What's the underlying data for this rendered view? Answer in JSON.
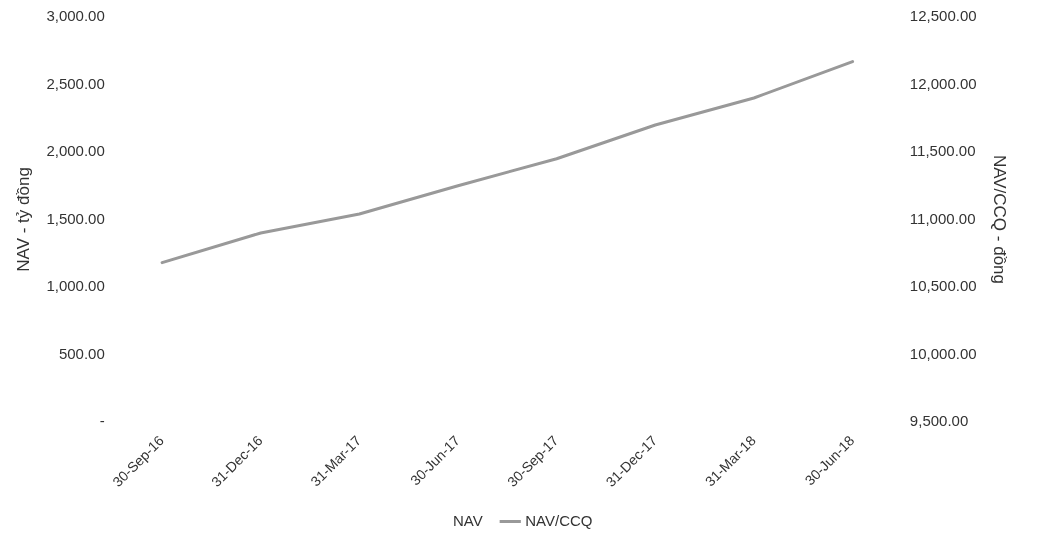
{
  "chart_data": {
    "type": "line",
    "ylabel": "NAV - tỷ đồng",
    "y2label": "NAV/CCQ - đồng",
    "categories": [
      "30-Sep-16",
      "31-Dec-16",
      "31-Mar-17",
      "30-Jun-17",
      "30-Sep-17",
      "31-Dec-17",
      "31-Mar-18",
      "30-Jun-18"
    ],
    "series": [
      {
        "name": "NAV",
        "type": "bar",
        "values": [
          null,
          null,
          null,
          null,
          null,
          null,
          null,
          null
        ]
      },
      {
        "name": "NAV/CCQ",
        "axis": "y2",
        "color": "#999999",
        "values": [
          10680,
          10900,
          11040,
          11250,
          11450,
          11700,
          11900,
          12170
        ]
      }
    ],
    "ylim": [
      0,
      3000
    ],
    "yticks": [
      {
        "value": 0,
        "label": "-"
      },
      {
        "value": 500,
        "label": "500.00"
      },
      {
        "value": 1000,
        "label": "1,000.00"
      },
      {
        "value": 1500,
        "label": "1,500.00"
      },
      {
        "value": 2000,
        "label": "2,000.00"
      },
      {
        "value": 2500,
        "label": "2,500.00"
      },
      {
        "value": 3000,
        "label": "3,000.00"
      }
    ],
    "y2lim": [
      9500,
      12500
    ],
    "y2ticks": [
      {
        "value": 9500,
        "label": "9,500.00"
      },
      {
        "value": 10000,
        "label": "10,000.00"
      },
      {
        "value": 10500,
        "label": "10,500.00"
      },
      {
        "value": 11000,
        "label": "11,000.00"
      },
      {
        "value": 11500,
        "label": "11,500.00"
      },
      {
        "value": 12000,
        "label": "12,000.00"
      },
      {
        "value": 12500,
        "label": "12,500.00"
      }
    ],
    "grid": false,
    "legend": "bottom",
    "marker": "none",
    "line_style": "solid"
  }
}
